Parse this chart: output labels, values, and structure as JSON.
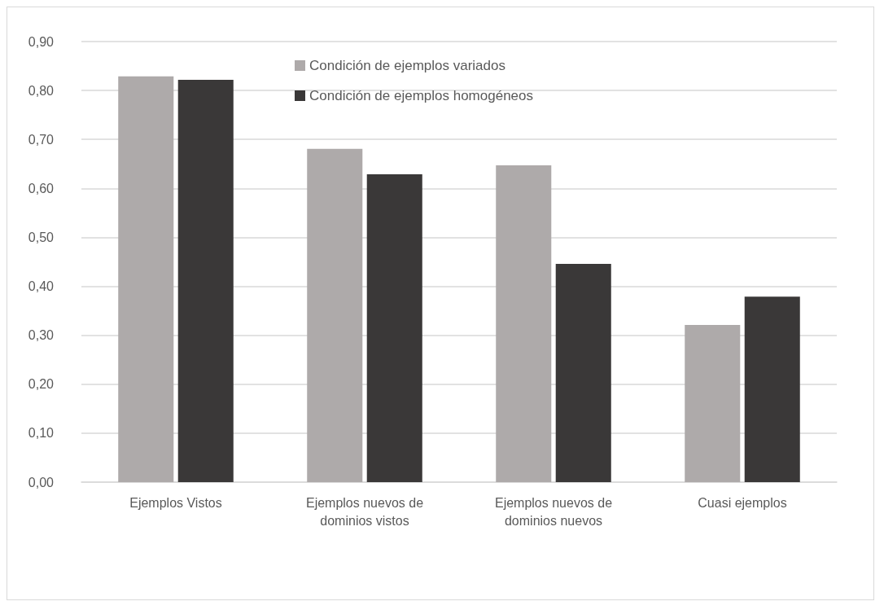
{
  "chart_data": {
    "type": "bar",
    "categories": [
      "Ejemplos Vistos",
      "Ejemplos nuevos de\ndominios vistos",
      "Ejemplos nuevos de\ndominios nuevos",
      "Cuasi ejemplos"
    ],
    "series": [
      {
        "name": "Condición de ejemplos variados",
        "color": "#aeaaaa",
        "values": [
          0.829,
          0.681,
          0.647,
          0.321
        ]
      },
      {
        "name": "Condición de ejemplos homogéneos",
        "color": "#3a3838",
        "values": [
          0.822,
          0.629,
          0.446,
          0.379
        ]
      }
    ],
    "ylim": [
      0,
      0.9
    ],
    "yticks": [
      {
        "value": 0,
        "label": "0,00"
      },
      {
        "value": 0.1,
        "label": "0,10"
      },
      {
        "value": 0.2,
        "label": "0,20"
      },
      {
        "value": 0.3,
        "label": "0,30"
      },
      {
        "value": 0.4,
        "label": "0,40"
      },
      {
        "value": 0.5,
        "label": "0,50"
      },
      {
        "value": 0.6,
        "label": "0,60"
      },
      {
        "value": 0.7,
        "label": "0,70"
      },
      {
        "value": 0.8,
        "label": "0,80"
      },
      {
        "value": 0.9,
        "label": "0,90"
      }
    ],
    "grid": "y",
    "legend": "top"
  }
}
